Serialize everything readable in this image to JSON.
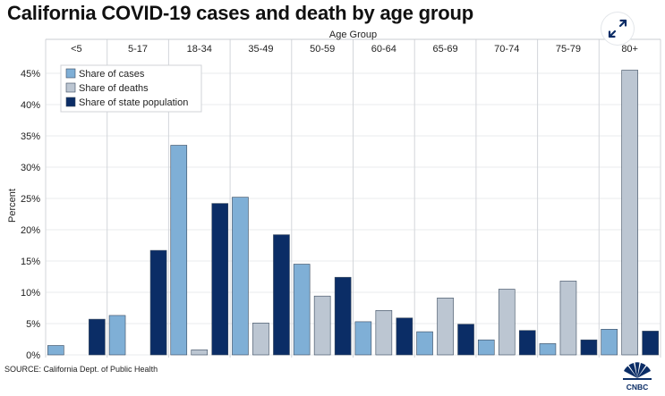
{
  "header": {
    "title": "California COVID-19 cases and death by age group"
  },
  "footer": {
    "source": "SOURCE: California Dept. of Public Health",
    "logo_text": "CNBC"
  },
  "icons": {
    "expand": "expand-arrows-icon",
    "logo": "nbc-peacock-icon"
  },
  "colors": {
    "cases": "#7fafd6",
    "deaths": "#bcc6d2",
    "population": "#0b2d66",
    "expand_icon": "#0b2d66"
  },
  "chart_data": {
    "type": "bar",
    "title": "California COVID-19 cases and death by age group",
    "xlabel": "Age Group",
    "ylabel": "Percent",
    "x_axis_position": "top",
    "categories": [
      "<5",
      "5-17",
      "18-34",
      "35-49",
      "50-59",
      "60-64",
      "65-69",
      "70-74",
      "75-79",
      "80+"
    ],
    "series": [
      {
        "name": "Share of cases",
        "color": "#7fafd6",
        "values": [
          1.5,
          6.3,
          33.5,
          25.2,
          14.5,
          5.3,
          3.7,
          2.4,
          1.8,
          4.1
        ]
      },
      {
        "name": "Share of deaths",
        "color": "#bcc6d2",
        "values": [
          0,
          0,
          0.8,
          5.1,
          9.4,
          7.1,
          9.1,
          10.5,
          11.8,
          45.5
        ]
      },
      {
        "name": "Share of state population",
        "color": "#0b2d66",
        "values": [
          5.7,
          16.7,
          24.2,
          19.2,
          12.4,
          5.9,
          4.9,
          3.9,
          2.4,
          3.8
        ]
      }
    ],
    "yticks": [
      0,
      5,
      10,
      15,
      20,
      25,
      30,
      35,
      40,
      45
    ],
    "ytick_labels": [
      "0%",
      "5%",
      "10%",
      "15%",
      "20%",
      "25%",
      "30%",
      "35%",
      "40%",
      "45%"
    ],
    "ylim": [
      0,
      47
    ],
    "legend": "top-left",
    "grid": true
  }
}
